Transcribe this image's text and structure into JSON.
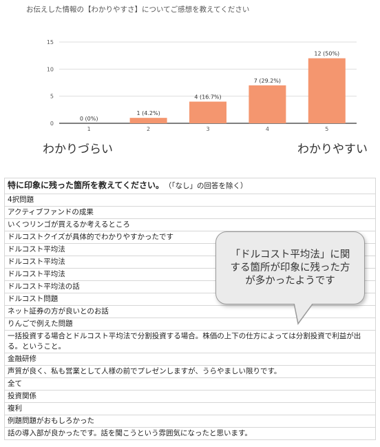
{
  "chart_data": {
    "type": "bar",
    "title": "お伝えした情報の【わかりやすさ】についてご感想を教えてください",
    "categories": [
      "1",
      "2",
      "3",
      "4",
      "5"
    ],
    "values": [
      0,
      1,
      4,
      7,
      12
    ],
    "data_labels": [
      "0 (0%)",
      "1 (4.2%)",
      "4 (16.7%)",
      "7 (29.2%)",
      "12 (50%)"
    ],
    "y_ticks": [
      "0",
      "5",
      "10",
      "15"
    ],
    "ylim": [
      0,
      15
    ],
    "grid": true,
    "bar_color": "#f4966f",
    "scale_left_label": "わかりづらい",
    "scale_right_label": "わかりやすい"
  },
  "table": {
    "header_main": "特に印象に残った箇所を教えてください。",
    "header_note": "（「なし」の回答を除く）",
    "rows": [
      "4択問題",
      "アクティブファンドの成果",
      "いくつリンゴが買えるか考えるところ",
      "ドルコストクイズが具体的でわかりやすかったです",
      "ドルコスト平均法",
      "ドルコスト平均法",
      "ドルコスト平均法",
      "ドルコスト平均法の話",
      "ドルコスト問題",
      "ネット証券の方が良いとのお話",
      "りんごで例えた問題",
      "一括投資する場合とドルコスト平均法で分割投資する場合。株価の上下の仕方によっては分割投資で利益が出る。ということ。",
      "金融研修",
      "声質が良く、私も営業として人様の前でプレゼンしますが、うらやましい限りです。",
      "全て",
      "投資関係",
      "複利",
      "例題問題がおもしろかった",
      "話の導入部が良かったです。話を聞こうという雰囲気になったと思います。"
    ]
  },
  "callout": {
    "text": "「ドルコスト平均法」に関する箇所が印象に残った方が多かったようです"
  }
}
